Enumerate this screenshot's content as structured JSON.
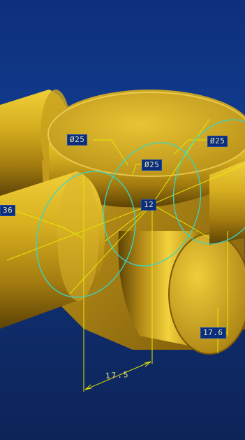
{
  "viewport": {
    "background_top": "#0d2f7d",
    "background_bottom": "#0d2458",
    "model_color": "#c9a41d",
    "annotation_color": "#e6e600",
    "circle_color": "#38d6c8"
  },
  "dimensions": {
    "dia_left": "Ø25",
    "dia_center": "Ø25",
    "dia_right": "Ø25",
    "center_value": "12",
    "left_edge_value": "36",
    "right_bottom_value": "17.6",
    "bottom_value": "17.5"
  }
}
